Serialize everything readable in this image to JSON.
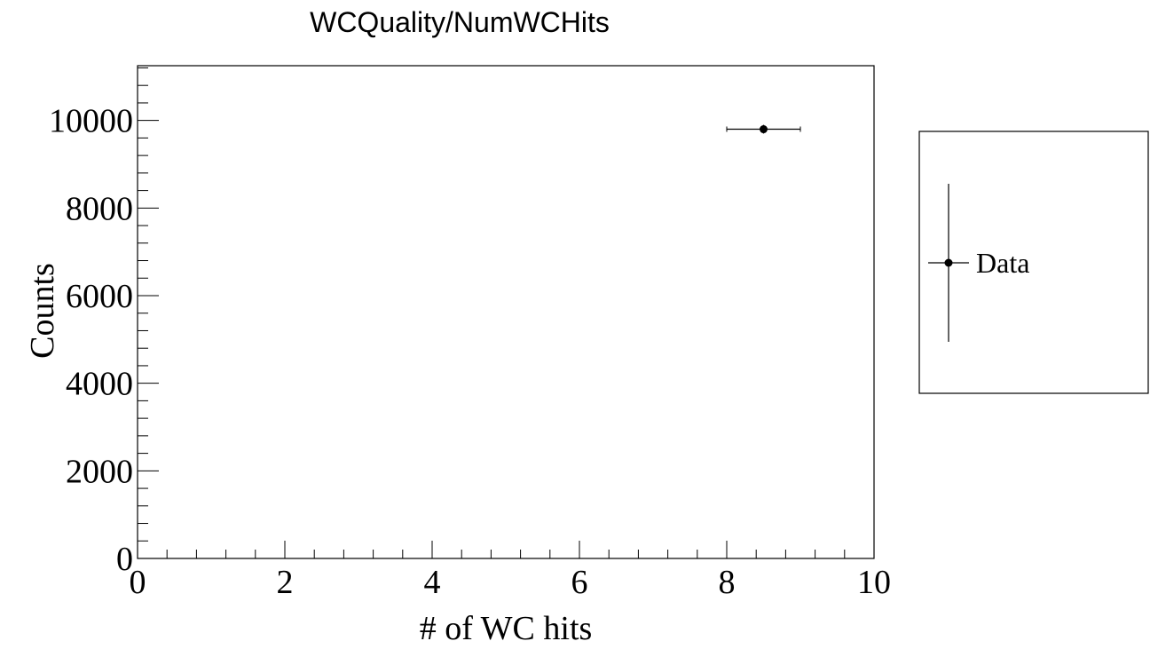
{
  "chart_data": {
    "type": "scatter",
    "title": "WCQuality/NumWCHits",
    "xlabel": "# of WC hits",
    "ylabel": "Counts",
    "xlim": [
      0,
      10
    ],
    "ylim": [
      0,
      11250
    ],
    "x_ticks": [
      0,
      2,
      4,
      6,
      8,
      10
    ],
    "y_ticks": [
      0,
      2000,
      4000,
      6000,
      8000,
      10000
    ],
    "grid": false,
    "legend_position": "right",
    "series": [
      {
        "name": "Data",
        "points": [
          {
            "x": 8.5,
            "y": 9800,
            "x_err_low": 0.5,
            "x_err_high": 0.5,
            "y_err": 99
          }
        ]
      }
    ]
  }
}
